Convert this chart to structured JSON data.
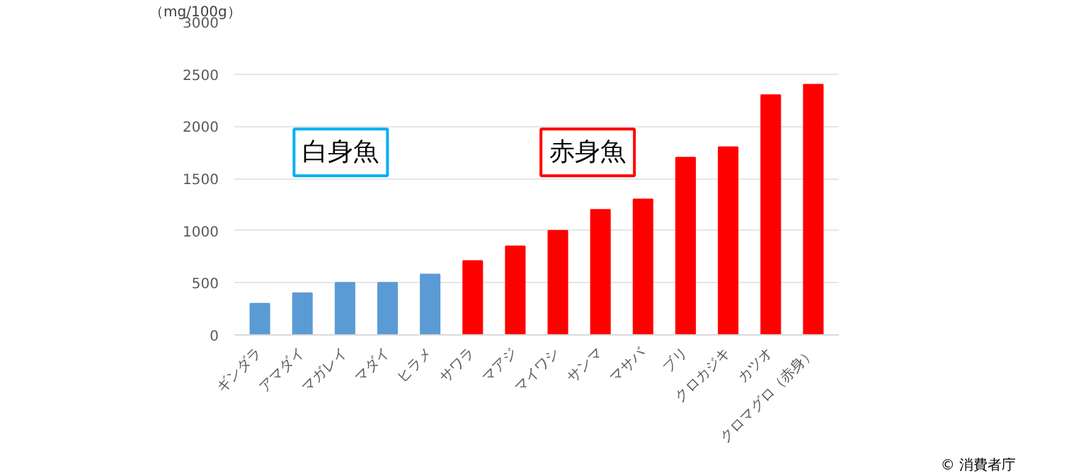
{
  "chart_data": {
    "type": "bar",
    "ylabel": "（mg/100g）",
    "categories": [
      "ギンダラ",
      "アマダイ",
      "マガレイ",
      "マダイ",
      "ヒラメ",
      "サワラ",
      "マアジ",
      "マイワシ",
      "サンマ",
      "マサバ",
      "ブリ",
      "クロカジキ",
      "カツオ",
      "クロマグロ（赤身）"
    ],
    "values": [
      300,
      400,
      500,
      500,
      580,
      710,
      850,
      1000,
      1200,
      1300,
      1700,
      1800,
      2300,
      2400
    ],
    "colors": [
      "#5b9bd5",
      "#5b9bd5",
      "#5b9bd5",
      "#5b9bd5",
      "#5b9bd5",
      "#ff0000",
      "#ff0000",
      "#ff0000",
      "#ff0000",
      "#ff0000",
      "#ff0000",
      "#ff0000",
      "#ff0000",
      "#ff0000"
    ],
    "ylim": [
      0,
      3000
    ],
    "yticks": [
      0,
      500,
      1000,
      1500,
      2000,
      2500,
      3000
    ],
    "grid": "y",
    "annotations": [
      "白身魚",
      "赤身魚",
      "© 消費者庁"
    ]
  }
}
